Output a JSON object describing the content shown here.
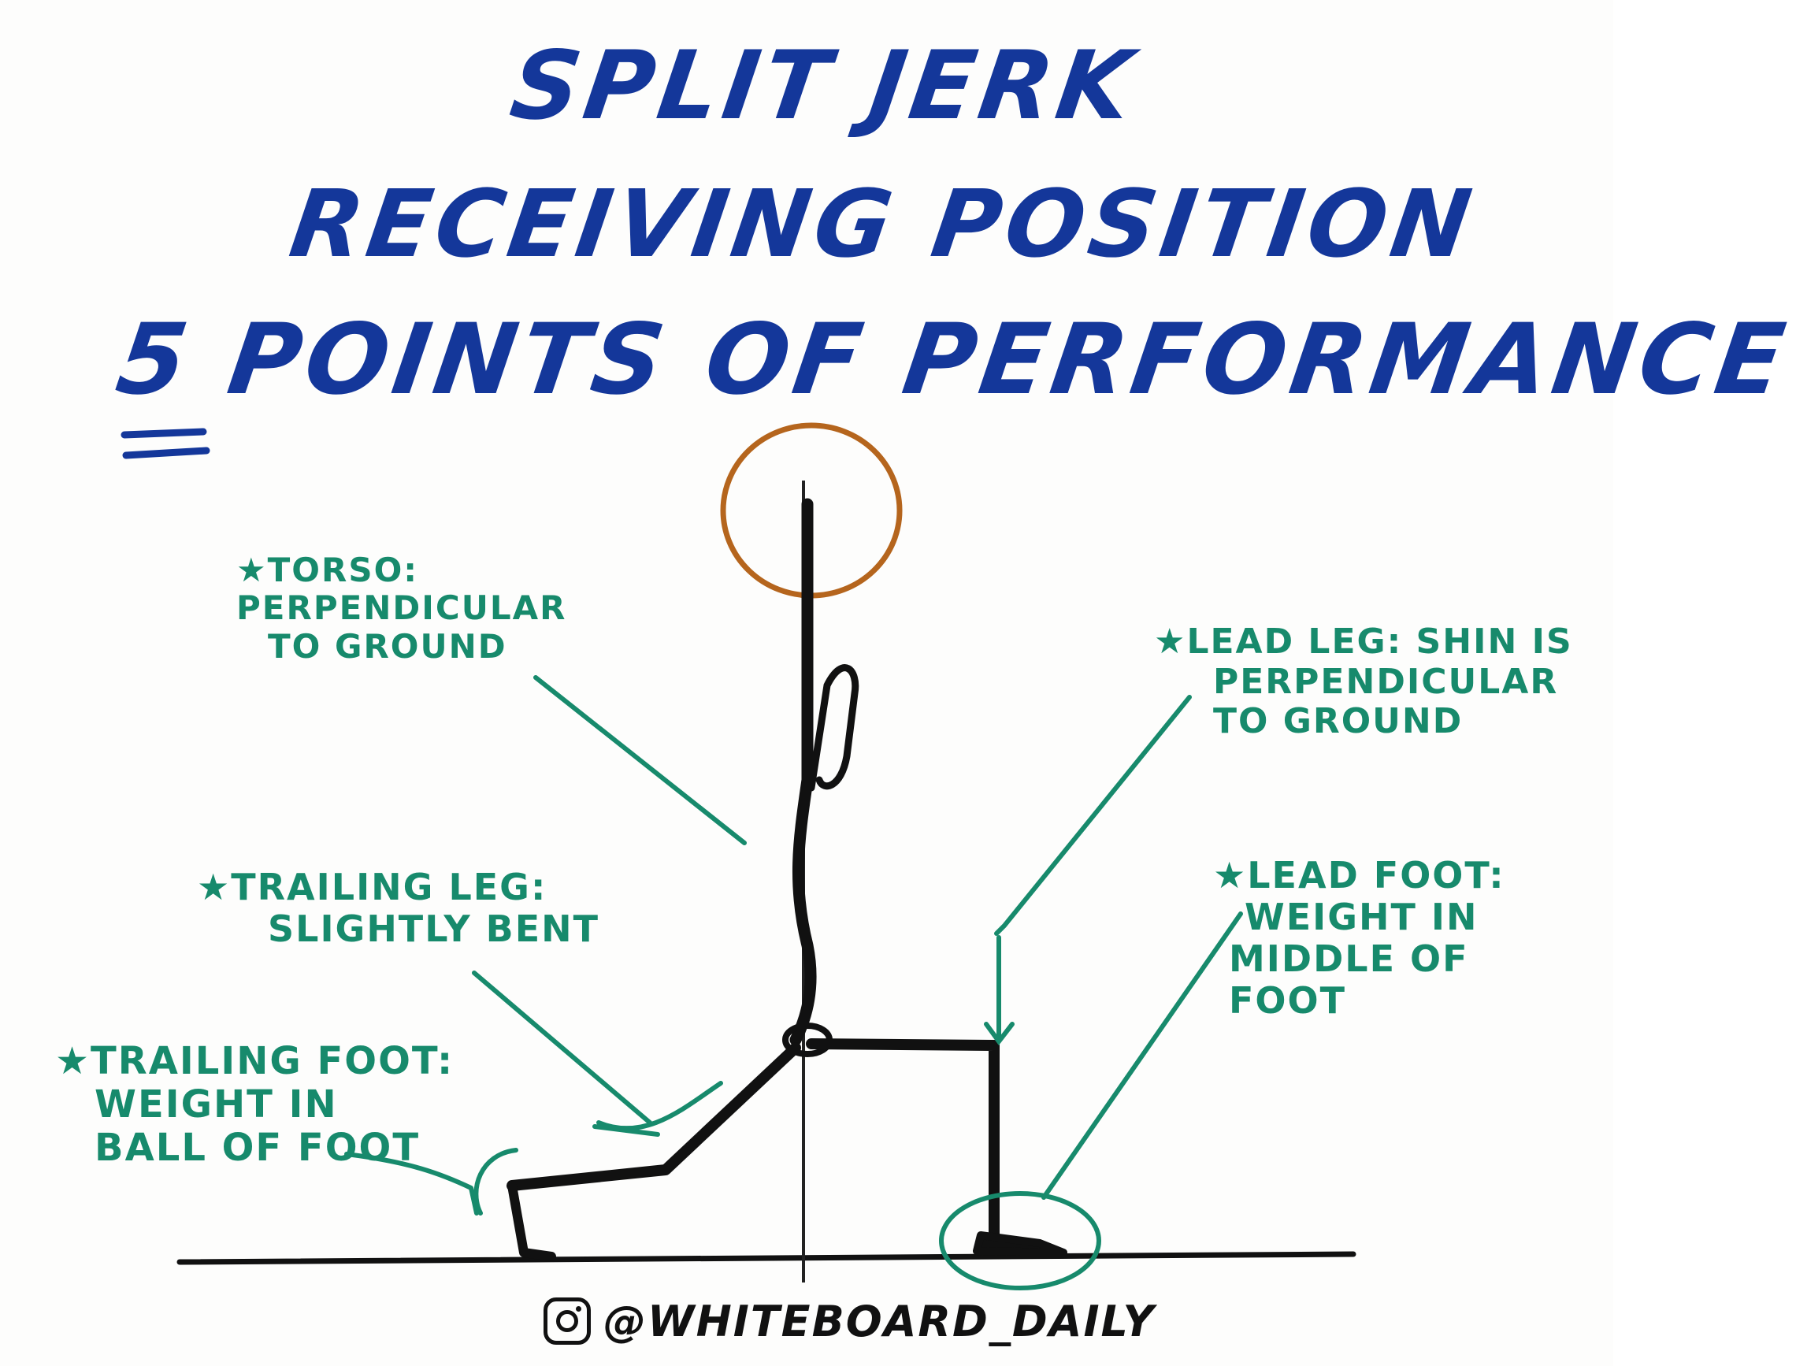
{
  "title": {
    "line1": "SPLIT JERK",
    "line2": "RECEIVING POSITION",
    "line3": "5 POINTS OF PERFORMANCE"
  },
  "annotations": {
    "torso": {
      "lines": [
        "★TORSO:",
        "PERPENDICULAR",
        "TO GROUND"
      ]
    },
    "trailing_leg": {
      "lines": [
        "★TRAILING LEG:",
        "SLIGHTLY BENT"
      ]
    },
    "trailing_foot": {
      "lines": [
        "★TRAILING FOOT:",
        "WEIGHT IN",
        "BALL OF FOOT"
      ]
    },
    "lead_leg": {
      "lines": [
        "★LEAD LEG: SHIN IS",
        "PERPENDICULAR",
        "TO GROUND"
      ]
    },
    "lead_foot": {
      "lines": [
        "★LEAD FOOT:",
        "WEIGHT IN",
        "MIDDLE OF",
        "FOOT"
      ]
    }
  },
  "footer": {
    "icon": "instagram-icon",
    "handle": "@WHITEBOARD_DAILY"
  },
  "colors": {
    "title": "#14379a",
    "annotation": "#178a6c",
    "figure": "#111111",
    "head_circle": "#b5651d"
  }
}
